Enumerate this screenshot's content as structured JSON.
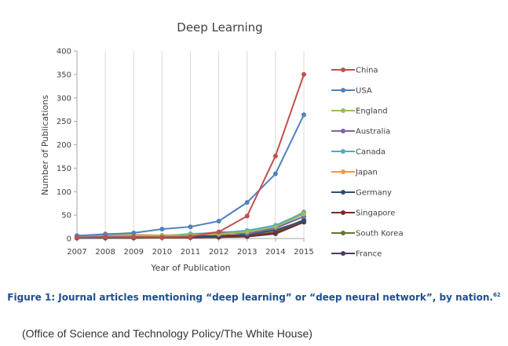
{
  "chart_data": {
    "type": "line",
    "title": "Deep Learning",
    "xlabel": "Year of Publication",
    "ylabel": "Number of Publications",
    "ylim": [
      0,
      400
    ],
    "y_ticks": [
      "0",
      "50",
      "100",
      "150",
      "200",
      "250",
      "300",
      "350",
      "400"
    ],
    "categories": [
      "2007",
      "2008",
      "2009",
      "2010",
      "2011",
      "2012",
      "2013",
      "2014",
      "2015"
    ],
    "grid": "vertical",
    "legend_position": "right",
    "series": [
      {
        "name": "China",
        "color": "#c0504d",
        "values": [
          2,
          3,
          3,
          3,
          4,
          14,
          48,
          176,
          350
        ]
      },
      {
        "name": "USA",
        "color": "#4f81bd",
        "values": [
          6,
          9,
          12,
          20,
          25,
          37,
          77,
          138,
          264
        ]
      },
      {
        "name": "England",
        "color": "#9bbb59",
        "values": [
          6,
          7,
          7,
          6,
          8,
          10,
          14,
          25,
          52
        ]
      },
      {
        "name": "Australia",
        "color": "#8064a2",
        "values": [
          2,
          4,
          4,
          4,
          7,
          14,
          10,
          22,
          47
        ]
      },
      {
        "name": "Canada",
        "color": "#4bacc6",
        "values": [
          3,
          4,
          5,
          5,
          10,
          12,
          17,
          28,
          55
        ]
      },
      {
        "name": "Japan",
        "color": "#f79646",
        "values": [
          4,
          10,
          8,
          7,
          8,
          9,
          12,
          24,
          57
        ]
      },
      {
        "name": "Germany",
        "color": "#2c4d75",
        "values": [
          1,
          2,
          3,
          3,
          4,
          6,
          8,
          18,
          38
        ]
      },
      {
        "name": "Singapore",
        "color": "#772c2a",
        "values": [
          1,
          2,
          2,
          2,
          2,
          3,
          5,
          12,
          35
        ]
      },
      {
        "name": "South Korea",
        "color": "#5f7530",
        "values": [
          1,
          1,
          2,
          2,
          3,
          3,
          5,
          14,
          40
        ]
      },
      {
        "name": "France",
        "color": "#4d3b62",
        "values": [
          1,
          1,
          1,
          2,
          2,
          3,
          4,
          10,
          35
        ]
      }
    ]
  },
  "caption": {
    "text": "Figure 1: Journal articles mentioning “deep learning” or “deep neural network”, by nation.",
    "footnote": "62"
  },
  "source": "(Office of Science and Technology Policy/The White House)"
}
